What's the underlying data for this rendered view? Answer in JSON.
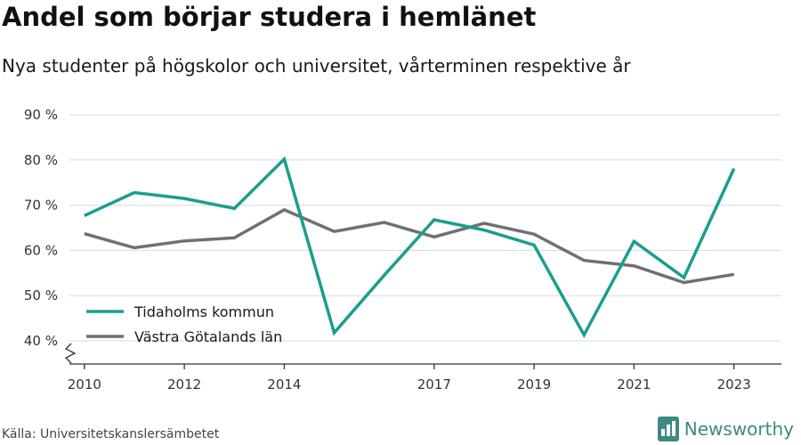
{
  "title": "Andel som börjar studera i hemlänet",
  "subtitle": "Nya studenter på högskolor och universitet, vårterminen respektive år",
  "source": "Källa: Universitetskanslersämbetet",
  "brand": {
    "name": "Newsworthy",
    "icon": "newsworthy-logo-icon",
    "color": "#3d8a82"
  },
  "chart_data": {
    "type": "line",
    "x": [
      2010,
      2011,
      2012,
      2013,
      2014,
      2015,
      2016,
      2017,
      2018,
      2019,
      2020,
      2021,
      2022,
      2023
    ],
    "x_ticks": [
      "2010",
      "2012",
      "2014",
      "2017",
      "2019",
      "2021",
      "2023"
    ],
    "y_ticks": [
      "40 %",
      "50 %",
      "60 %",
      "70 %",
      "80 %",
      "90 %"
    ],
    "ylim": [
      40,
      90
    ],
    "y_axis_break": true,
    "grid": "horizontal",
    "legend_placement": "bottom-left",
    "series": [
      {
        "name": "Tidaholms kommun",
        "color": "#1a9e8f",
        "values": [
          67.7,
          72.8,
          71.5,
          69.3,
          80.2,
          41.8,
          54.5,
          66.8,
          64.5,
          61.2,
          41.3,
          62.0,
          54.0,
          78.1
        ]
      },
      {
        "name": "Västra Götalands län",
        "color": "#707073",
        "values": [
          63.7,
          60.6,
          62.1,
          62.8,
          69.0,
          64.2,
          66.2,
          63.0,
          66.0,
          63.6,
          57.8,
          56.6,
          52.9,
          54.7
        ]
      }
    ]
  }
}
